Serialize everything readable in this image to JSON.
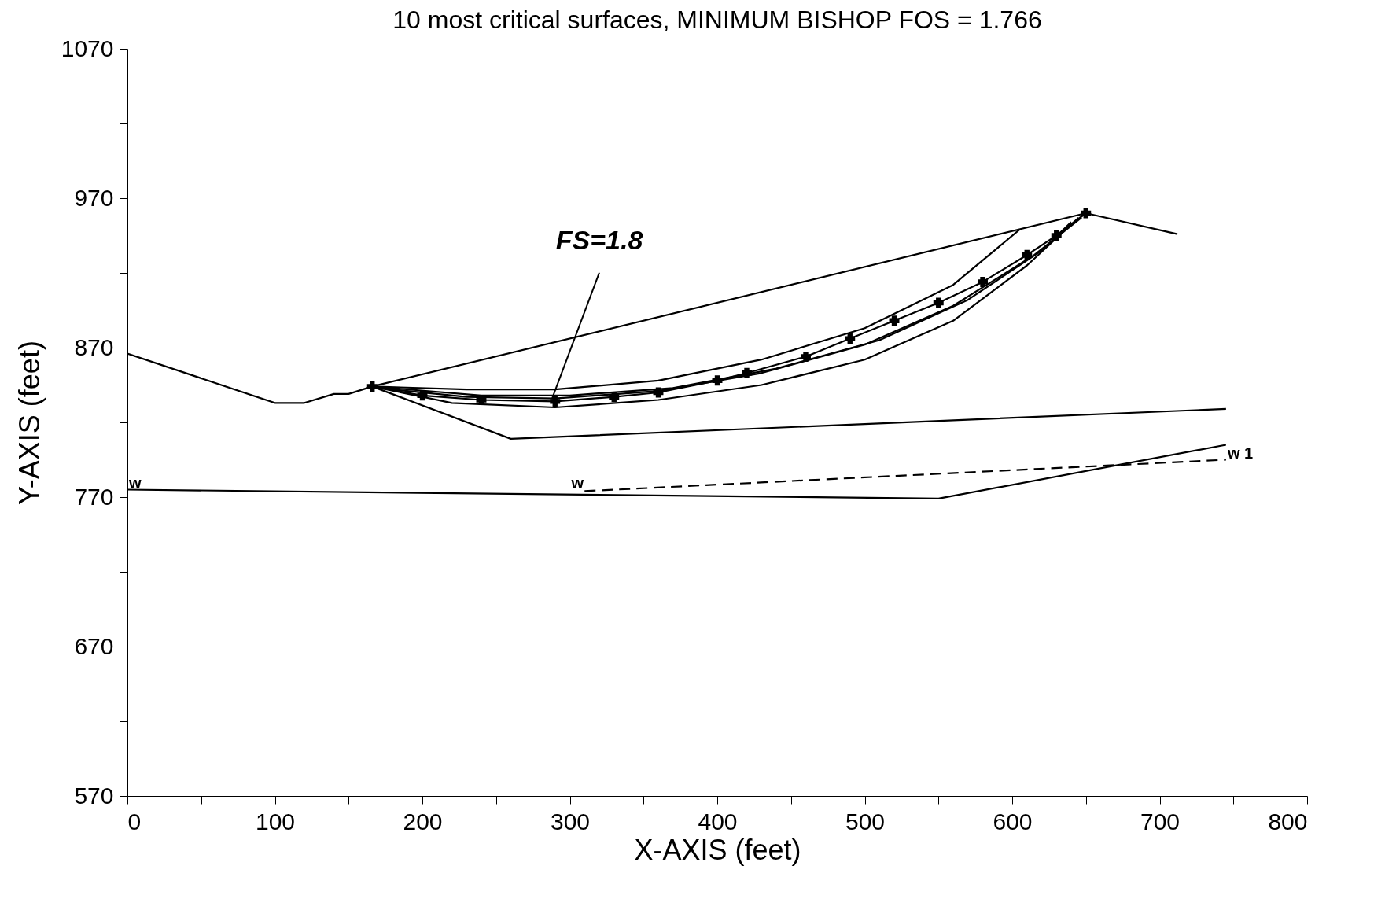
{
  "chart_data": {
    "type": "line",
    "title": "10 most critical surfaces, MINIMUM BISHOP FOS =  1.766",
    "xlabel": "X-AXIS (feet)",
    "ylabel": "Y-AXIS (feet)",
    "xlim": [
      0,
      800
    ],
    "ylim": [
      570,
      1070
    ],
    "xticks": [
      0,
      {
        "value": 50,
        "label": null
      },
      100,
      {
        "value": 150,
        "label": null
      },
      200,
      {
        "value": 250,
        "label": null
      },
      300,
      {
        "value": 350,
        "label": null
      },
      400,
      {
        "value": 450,
        "label": null
      },
      500,
      {
        "value": 550,
        "label": null
      },
      600,
      {
        "value": 650,
        "label": null
      },
      700,
      {
        "value": 750,
        "label": null
      },
      800
    ],
    "yticks": [
      570,
      {
        "value": 620,
        "label": null
      },
      670,
      {
        "value": 720,
        "label": null
      },
      770,
      {
        "value": 820,
        "label": null
      },
      870,
      {
        "value": 920,
        "label": null
      },
      970,
      {
        "value": 1020,
        "label": null
      },
      1070
    ],
    "grid": false,
    "series": [
      {
        "color": "#000000",
        "x": [
          0,
          100,
          120,
          140,
          150,
          166,
          650,
          712
        ],
        "values": [
          866,
          833,
          833,
          839,
          839,
          844,
          960,
          946
        ]
      },
      {
        "color": "#000000",
        "x": [
          166,
          260,
          745
        ],
        "values": [
          844,
          809,
          829
        ]
      },
      {
        "color": "#000000",
        "x": [
          0,
          550,
          745
        ],
        "values": [
          775,
          769,
          805
        ]
      },
      {
        "color": "#000000",
        "line_style": "dashed",
        "x": [
          310,
          745
        ],
        "values": [
          774,
          795
        ]
      },
      {
        "color": "#000000",
        "x": [
          166,
          220,
          290,
          360,
          430,
          500,
          560,
          610,
          645
        ],
        "values": [
          844,
          833,
          830,
          835,
          845,
          862,
          888,
          925,
          957
        ]
      },
      {
        "color": "#000000",
        "x": [
          166,
          230,
          290,
          360,
          430,
          500,
          560,
          605
        ],
        "values": [
          844,
          842,
          842,
          848,
          862,
          883,
          912,
          949
        ]
      },
      {
        "color": "#000000",
        "x": [
          166,
          240,
          300,
          370,
          440,
          510,
          570,
          620,
          640
        ],
        "values": [
          844,
          838,
          838,
          843,
          856,
          875,
          902,
          935,
          954
        ]
      },
      {
        "color": "#000000",
        "x": [
          170,
          230,
          290,
          360,
          430,
          500,
          560,
          615,
          647
        ],
        "values": [
          843,
          837,
          836,
          841,
          853,
          872,
          898,
          932,
          957
        ]
      },
      {
        "color": "#000000",
        "marker": "cross",
        "x": [
          166,
          200,
          240,
          290,
          330,
          360,
          400,
          420,
          460,
          490,
          520,
          550,
          580,
          610,
          630,
          650
        ],
        "values": [
          844,
          838,
          835,
          834,
          837,
          840,
          848,
          853,
          864,
          876,
          888,
          900,
          914,
          932,
          945,
          960
        ]
      }
    ],
    "annotations": [
      {
        "text": "FS=1.8",
        "x": 288,
        "y": 836
      },
      {
        "text": "w",
        "x": 0,
        "y": 775
      },
      {
        "text": "w",
        "x": 300,
        "y": 775
      },
      {
        "text": "w 1",
        "x": 745,
        "y": 795
      }
    ]
  }
}
